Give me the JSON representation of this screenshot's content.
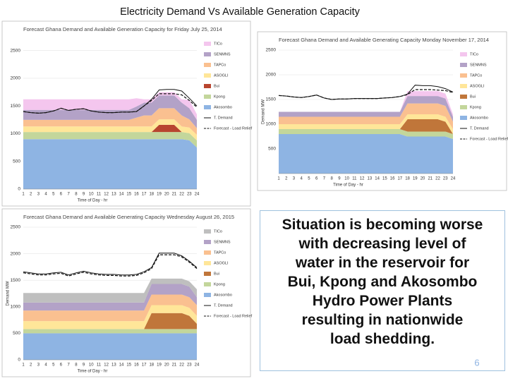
{
  "title": "Electricity Demand Vs Available Generation Capacity",
  "body_lines": [
    "Situation is becoming worse",
    "with decreasing level of",
    "water in the reservoir for",
    "Bui, Kpong and Akosombo",
    "Hydro Power Plants",
    "resulting in nationwide",
    "load shedding."
  ],
  "page_number": "6",
  "chart_data": [
    {
      "type": "area",
      "title": "Forecast Ghana Demand and Available Generation Capacity for  Friday July 25, 2014",
      "x_label": "Time of Day - hr",
      "categories": [
        "1",
        "2",
        "3",
        "4",
        "5",
        "6",
        "7",
        "8",
        "9",
        "10",
        "11",
        "12",
        "13",
        "14",
        "15",
        "16",
        "17",
        "18",
        "19",
        "20",
        "21",
        "22",
        "23",
        "24"
      ],
      "ylim": [
        0,
        2700
      ],
      "yticks": [
        0,
        500,
        1000,
        1500,
        2000,
        2500
      ],
      "series": [
        {
          "name": "Akosombo",
          "kind": "area",
          "color": "#8eb4e3",
          "values": [
            900,
            900,
            900,
            900,
            900,
            900,
            900,
            900,
            900,
            900,
            900,
            900,
            900,
            900,
            900,
            900,
            900,
            900,
            900,
            900,
            900,
            900,
            880,
            750
          ]
        },
        {
          "name": "Kpong",
          "kind": "area",
          "color": "#c3d69b",
          "values": [
            130,
            130,
            130,
            130,
            130,
            130,
            130,
            130,
            130,
            130,
            130,
            130,
            130,
            130,
            130,
            130,
            130,
            130,
            130,
            130,
            130,
            130,
            130,
            130
          ]
        },
        {
          "name": "Bui",
          "kind": "area",
          "color": "#b8452f",
          "values": [
            0,
            0,
            0,
            0,
            0,
            0,
            0,
            0,
            0,
            0,
            0,
            0,
            0,
            0,
            0,
            0,
            0,
            0,
            130,
            130,
            130,
            0,
            0,
            0
          ]
        },
        {
          "name": "ASOGLI",
          "kind": "area",
          "color": "#ffe699",
          "values": [
            100,
            100,
            100,
            100,
            100,
            100,
            100,
            100,
            100,
            100,
            100,
            100,
            100,
            100,
            100,
            100,
            100,
            100,
            100,
            100,
            100,
            100,
            100,
            100
          ]
        },
        {
          "name": "TAPCo",
          "kind": "area",
          "color": "#fac090",
          "values": [
            120,
            120,
            120,
            120,
            120,
            120,
            120,
            120,
            120,
            120,
            120,
            120,
            120,
            120,
            120,
            160,
            200,
            200,
            200,
            200,
            200,
            200,
            150,
            120
          ]
        },
        {
          "name": "SENMNS",
          "kind": "area",
          "color": "#b3a2c7",
          "values": [
            180,
            180,
            180,
            180,
            180,
            180,
            180,
            180,
            180,
            180,
            180,
            180,
            180,
            180,
            180,
            200,
            230,
            230,
            230,
            230,
            230,
            230,
            200,
            150
          ]
        },
        {
          "name": "TICo",
          "kind": "area",
          "color": "#f4c6ee",
          "values": [
            190,
            190,
            190,
            190,
            190,
            190,
            190,
            190,
            190,
            190,
            190,
            190,
            190,
            190,
            190,
            150,
            60,
            60,
            60,
            60,
            60,
            60,
            150,
            100
          ]
        },
        {
          "name": "T. Demand",
          "kind": "line",
          "style": "solid",
          "color": "#111111",
          "values": [
            1400,
            1380,
            1370,
            1380,
            1410,
            1460,
            1420,
            1440,
            1450,
            1410,
            1390,
            1380,
            1380,
            1390,
            1390,
            1400,
            1500,
            1620,
            1790,
            1800,
            1800,
            1770,
            1640,
            1500
          ]
        },
        {
          "name": "Forecast - Load Relief",
          "kind": "line",
          "style": "dashed",
          "color": "#111111",
          "values": [
            1400,
            1380,
            1370,
            1380,
            1410,
            1460,
            1420,
            1440,
            1450,
            1410,
            1390,
            1380,
            1380,
            1390,
            1390,
            1400,
            1500,
            1600,
            1720,
            1720,
            1720,
            1700,
            1600,
            1480
          ]
        }
      ]
    },
    {
      "type": "area",
      "title": "Forecast Ghana Demand and Available Generating Capacity Monday  November  17, 2014",
      "x_label": "Time of Day - hr",
      "y_label": "Demand MW",
      "categories": [
        "1",
        "2",
        "3",
        "4",
        "5",
        "6",
        "7",
        "8",
        "9",
        "10",
        "11",
        "12",
        "13",
        "14",
        "15",
        "16",
        "17",
        "18",
        "19",
        "20",
        "21",
        "22",
        "23",
        "24"
      ],
      "ylim": [
        0,
        2500
      ],
      "yticks": [
        500,
        1000,
        1500,
        2000,
        2500
      ],
      "series": [
        {
          "name": "Akosombo",
          "kind": "area",
          "color": "#8eb4e3",
          "values": [
            800,
            800,
            800,
            800,
            800,
            800,
            800,
            800,
            800,
            800,
            800,
            800,
            800,
            800,
            800,
            800,
            800,
            750,
            750,
            750,
            750,
            750,
            750,
            700
          ]
        },
        {
          "name": "Kpong",
          "kind": "area",
          "color": "#c3d69b",
          "values": [
            100,
            100,
            100,
            100,
            100,
            100,
            100,
            100,
            100,
            100,
            100,
            100,
            100,
            100,
            100,
            100,
            100,
            100,
            100,
            100,
            100,
            100,
            100,
            100
          ]
        },
        {
          "name": "Bui",
          "kind": "area",
          "color": "#c0763a",
          "values": [
            0,
            0,
            0,
            0,
            0,
            0,
            0,
            0,
            0,
            0,
            0,
            0,
            0,
            0,
            0,
            0,
            0,
            250,
            250,
            250,
            250,
            250,
            200,
            0
          ]
        },
        {
          "name": "ASOGLI",
          "kind": "area",
          "color": "#ffe699",
          "values": [
            100,
            100,
            100,
            100,
            100,
            100,
            100,
            100,
            100,
            100,
            100,
            100,
            100,
            100,
            100,
            100,
            100,
            100,
            100,
            100,
            100,
            100,
            100,
            100
          ]
        },
        {
          "name": "TAPCo",
          "kind": "area",
          "color": "#fac090",
          "values": [
            150,
            150,
            150,
            150,
            150,
            150,
            150,
            150,
            150,
            150,
            150,
            150,
            150,
            150,
            150,
            150,
            150,
            220,
            220,
            220,
            220,
            220,
            220,
            150
          ]
        },
        {
          "name": "SENMNS",
          "kind": "area",
          "color": "#b3a2c7",
          "values": [
            100,
            100,
            100,
            100,
            100,
            100,
            100,
            100,
            100,
            100,
            100,
            100,
            100,
            100,
            100,
            100,
            100,
            150,
            150,
            150,
            150,
            150,
            150,
            100
          ]
        },
        {
          "name": "TICo",
          "kind": "area",
          "color": "#f4c6ee",
          "values": [
            0,
            0,
            0,
            0,
            0,
            0,
            0,
            0,
            0,
            0,
            0,
            0,
            0,
            0,
            0,
            0,
            0,
            100,
            100,
            100,
            100,
            100,
            100,
            50
          ]
        },
        {
          "name": "T. Demand",
          "kind": "line",
          "style": "solid",
          "color": "#111111",
          "values": [
            1580,
            1570,
            1550,
            1540,
            1560,
            1590,
            1530,
            1500,
            1510,
            1510,
            1520,
            1520,
            1520,
            1520,
            1530,
            1540,
            1560,
            1610,
            1790,
            1780,
            1780,
            1760,
            1720,
            1650
          ]
        },
        {
          "name": "Forecast - Load Relief",
          "kind": "line",
          "style": "dashed",
          "color": "#111111",
          "values": [
            1580,
            1570,
            1550,
            1540,
            1560,
            1590,
            1530,
            1500,
            1510,
            1510,
            1520,
            1520,
            1520,
            1520,
            1530,
            1540,
            1560,
            1600,
            1700,
            1700,
            1700,
            1690,
            1680,
            1640
          ]
        }
      ]
    },
    {
      "type": "area",
      "title": "Forecast Ghana Demand and Available Generating Capacity Wednesday August 26, 2015",
      "x_label": "Time of Day - hr",
      "y_label": "Demand MW",
      "categories": [
        "1",
        "2",
        "3",
        "4",
        "5",
        "6",
        "7",
        "8",
        "9",
        "10",
        "11",
        "12",
        "13",
        "14",
        "15",
        "16",
        "17",
        "18",
        "19",
        "20",
        "21",
        "22",
        "23",
        "24"
      ],
      "ylim": [
        0,
        2500
      ],
      "yticks": [
        0,
        500,
        1000,
        1500,
        2000,
        2500
      ],
      "series": [
        {
          "name": "Akosombo",
          "kind": "area",
          "color": "#8eb4e3",
          "values": [
            500,
            500,
            500,
            500,
            500,
            500,
            500,
            500,
            500,
            500,
            500,
            500,
            500,
            500,
            500,
            500,
            500,
            500,
            500,
            500,
            500,
            500,
            500,
            500
          ]
        },
        {
          "name": "Kpong",
          "kind": "area",
          "color": "#c3d69b",
          "values": [
            80,
            80,
            80,
            80,
            80,
            80,
            80,
            80,
            80,
            80,
            80,
            80,
            80,
            80,
            80,
            80,
            80,
            80,
            80,
            80,
            80,
            80,
            80,
            80
          ]
        },
        {
          "name": "Bui",
          "kind": "area",
          "color": "#c0763a",
          "values": [
            0,
            0,
            0,
            0,
            0,
            0,
            0,
            0,
            0,
            0,
            0,
            0,
            0,
            0,
            0,
            0,
            0,
            300,
            300,
            300,
            300,
            300,
            250,
            100
          ]
        },
        {
          "name": "ASOGLI",
          "kind": "area",
          "color": "#ffe699",
          "values": [
            150,
            150,
            150,
            150,
            150,
            150,
            150,
            150,
            150,
            150,
            150,
            150,
            150,
            150,
            150,
            150,
            150,
            150,
            150,
            150,
            150,
            150,
            150,
            150
          ]
        },
        {
          "name": "TAPCo",
          "kind": "area",
          "color": "#fac090",
          "values": [
            200,
            200,
            200,
            200,
            200,
            200,
            200,
            200,
            200,
            200,
            200,
            200,
            200,
            200,
            200,
            200,
            200,
            200,
            200,
            200,
            200,
            200,
            200,
            200
          ]
        },
        {
          "name": "SENMNS",
          "kind": "area",
          "color": "#b3a2c7",
          "values": [
            150,
            150,
            150,
            150,
            150,
            150,
            150,
            150,
            150,
            150,
            150,
            150,
            150,
            150,
            150,
            150,
            150,
            200,
            200,
            200,
            200,
            200,
            200,
            150
          ]
        },
        {
          "name": "TICo",
          "kind": "area",
          "color": "#bfbfbf",
          "values": [
            180,
            180,
            180,
            180,
            180,
            180,
            180,
            180,
            180,
            180,
            180,
            180,
            180,
            180,
            180,
            180,
            180,
            100,
            100,
            100,
            100,
            100,
            100,
            150
          ]
        },
        {
          "name": "T. Demand",
          "kind": "line",
          "style": "solid",
          "color": "#111111",
          "values": [
            1660,
            1640,
            1620,
            1620,
            1640,
            1650,
            1600,
            1640,
            1670,
            1640,
            1620,
            1610,
            1610,
            1600,
            1600,
            1610,
            1660,
            1740,
            2010,
            2010,
            2010,
            1960,
            1860,
            1740
          ]
        },
        {
          "name": "Forecast - Load Relief",
          "kind": "line",
          "style": "dashed",
          "color": "#111111",
          "values": [
            1640,
            1620,
            1600,
            1600,
            1620,
            1630,
            1580,
            1620,
            1650,
            1620,
            1600,
            1590,
            1590,
            1580,
            1580,
            1590,
            1640,
            1720,
            1980,
            1980,
            1980,
            1940,
            1840,
            1720
          ]
        }
      ]
    }
  ]
}
